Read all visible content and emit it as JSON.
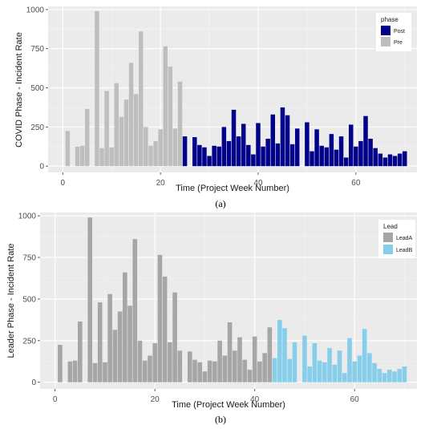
{
  "chart_data": [
    {
      "type": "bar",
      "caption": "(a)",
      "xlabel": "Time (Project Week Number)",
      "ylabel": "COVID Phase - Incident Rate",
      "xlim": [
        -3,
        72.5
      ],
      "ylim": [
        -40,
        1020
      ],
      "xticks": [
        0,
        20,
        40,
        60
      ],
      "yticks": [
        0,
        250,
        500,
        750,
        1000
      ],
      "grid": true,
      "legend": {
        "title": "phase",
        "position": "top-right",
        "entries": [
          "Post",
          "Pre"
        ]
      },
      "colors": {
        "Post": "#00008b",
        "Pre": "#bebebe"
      },
      "series": [
        {
          "name": "Pre",
          "x": [
            1,
            2,
            3,
            4,
            5,
            6,
            7,
            8,
            9,
            10,
            11,
            12,
            13,
            14,
            15,
            16,
            17,
            18,
            19,
            20,
            21,
            22,
            23,
            24
          ],
          "values": [
            225,
            0,
            125,
            130,
            365,
            0,
            990,
            115,
            480,
            120,
            530,
            315,
            425,
            660,
            460,
            860,
            250,
            130,
            160,
            235,
            765,
            635,
            240,
            540
          ]
        },
        {
          "name": "Post",
          "x": [
            25,
            26,
            27,
            28,
            29,
            30,
            31,
            32,
            33,
            34,
            35,
            36,
            37,
            38,
            39,
            40,
            41,
            42,
            43,
            44,
            45,
            46,
            47,
            48,
            49,
            50,
            51,
            52,
            53,
            54,
            55,
            56,
            57,
            58,
            59,
            60,
            61,
            62,
            63,
            64,
            65,
            66,
            67,
            68,
            69,
            70
          ],
          "values": [
            190,
            0,
            185,
            135,
            120,
            65,
            130,
            125,
            250,
            160,
            360,
            190,
            270,
            135,
            75,
            275,
            125,
            175,
            330,
            145,
            375,
            325,
            140,
            240,
            0,
            280,
            95,
            235,
            130,
            120,
            205,
            105,
            190,
            55,
            265,
            125,
            160,
            320,
            175,
            115,
            80,
            55,
            75,
            65,
            80,
            95
          ]
        }
      ]
    },
    {
      "type": "bar",
      "caption": "(b)",
      "xlabel": "Time (Project Week Number)",
      "ylabel": "Leader Phase - Incident Rate",
      "xlim": [
        -3,
        72.5
      ],
      "ylim": [
        -40,
        1020
      ],
      "xticks": [
        0,
        20,
        40,
        60
      ],
      "yticks": [
        0,
        250,
        500,
        750,
        1000
      ],
      "grid": true,
      "legend": {
        "title": "Lead",
        "position": "top-right",
        "entries": [
          "LeadA",
          "LeadB"
        ]
      },
      "colors": {
        "LeadA": "#a6a6a6",
        "LeadB": "#87ceeb"
      },
      "series": [
        {
          "name": "LeadA",
          "x": [
            1,
            2,
            3,
            4,
            5,
            6,
            7,
            8,
            9,
            10,
            11,
            12,
            13,
            14,
            15,
            16,
            17,
            18,
            19,
            20,
            21,
            22,
            23,
            24,
            25,
            26,
            27,
            28,
            29,
            30,
            31,
            32,
            33,
            34,
            35,
            36,
            37,
            38,
            39,
            40,
            41,
            42,
            43
          ],
          "values": [
            225,
            0,
            125,
            130,
            365,
            0,
            990,
            115,
            480,
            120,
            530,
            315,
            425,
            660,
            460,
            860,
            250,
            130,
            160,
            235,
            765,
            635,
            240,
            540,
            190,
            0,
            185,
            135,
            120,
            65,
            130,
            125,
            250,
            160,
            360,
            190,
            270,
            135,
            75,
            275,
            125,
            175,
            330
          ]
        },
        {
          "name": "LeadB",
          "x": [
            44,
            45,
            46,
            47,
            48,
            49,
            50,
            51,
            52,
            53,
            54,
            55,
            56,
            57,
            58,
            59,
            60,
            61,
            62,
            63,
            64,
            65,
            66,
            67,
            68,
            69,
            70
          ],
          "values": [
            145,
            375,
            325,
            140,
            240,
            0,
            280,
            95,
            235,
            130,
            120,
            205,
            105,
            190,
            55,
            265,
            125,
            160,
            320,
            175,
            115,
            80,
            55,
            75,
            65,
            80,
            95
          ]
        }
      ]
    }
  ]
}
